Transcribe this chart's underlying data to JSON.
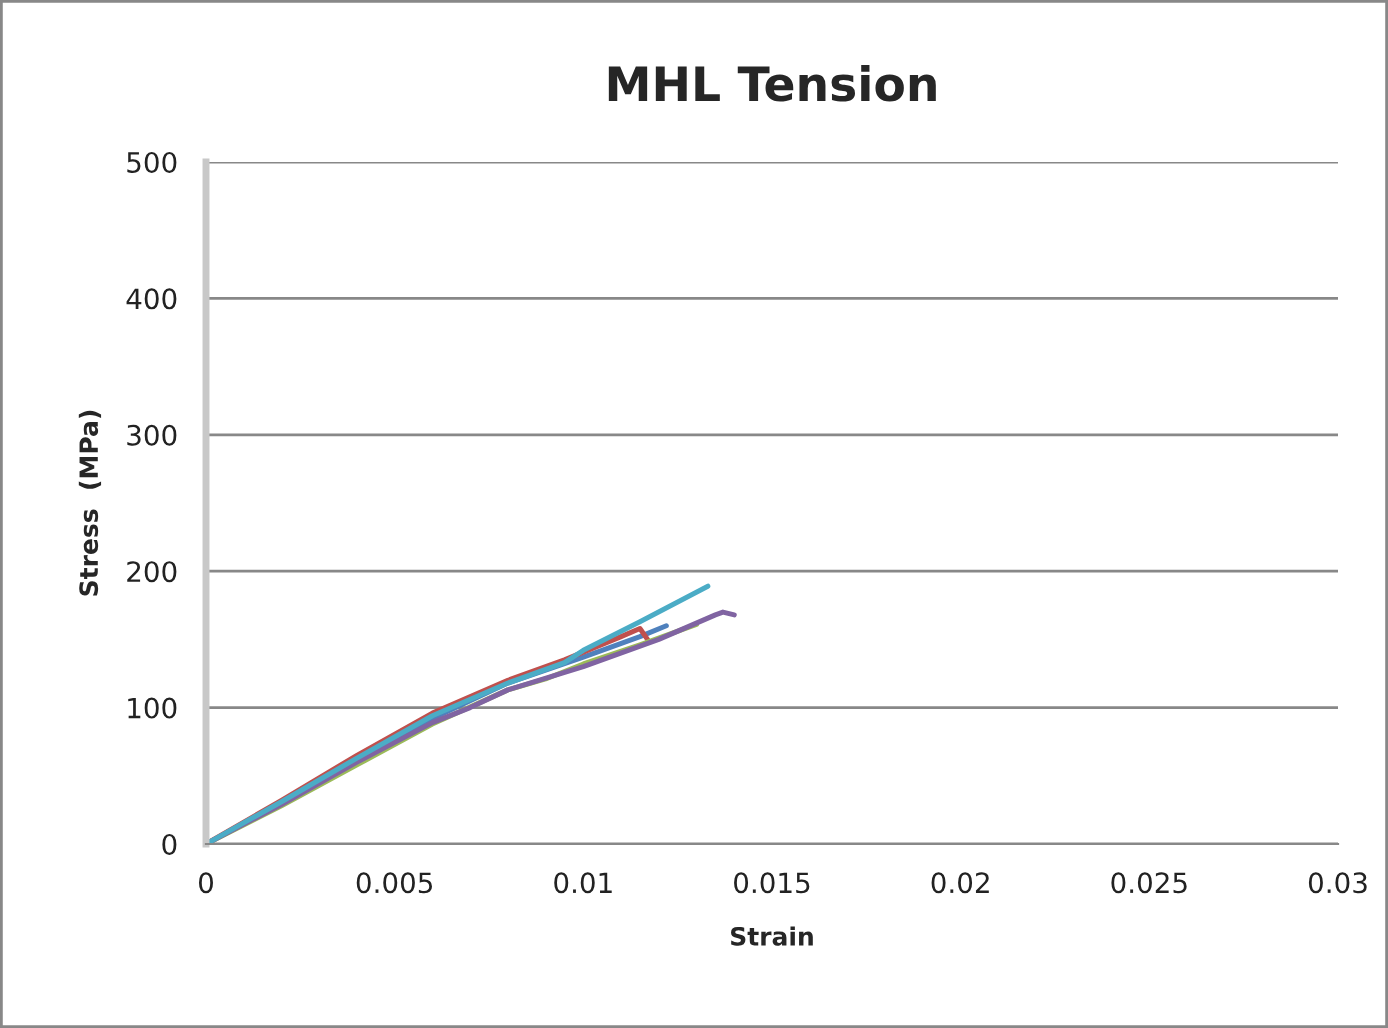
{
  "chart_data": {
    "type": "line",
    "title": "MHL Tension",
    "xlabel": "Strain",
    "ylabel": "Stress  (MPa)",
    "xlim": [
      0,
      0.03
    ],
    "xticks": [
      0,
      0.005,
      0.01,
      0.015,
      0.02,
      0.025,
      0.03
    ],
    "ylim": [
      0,
      500
    ],
    "yticks": [
      0,
      100,
      200,
      300,
      400,
      500
    ],
    "grid": "y",
    "legend": false,
    "marker": "none",
    "line_style": "solid",
    "series": [
      {
        "color": "#4f81bd",
        "x": [
          0,
          0.002,
          0.004,
          0.006,
          0.008,
          0.01,
          0.0115,
          0.0122
        ],
        "values": [
          0,
          30,
          62,
          92,
          118,
          137,
          152,
          160
        ]
      },
      {
        "color": "#c0504d",
        "x": [
          0,
          0.002,
          0.004,
          0.006,
          0.008,
          0.0095,
          0.011,
          0.0115,
          0.0117
        ],
        "values": [
          0,
          32,
          65,
          96,
          120,
          135,
          152,
          158,
          150
        ]
      },
      {
        "color": "#9bbb59",
        "x": [
          0,
          0.002,
          0.004,
          0.006,
          0.008,
          0.009,
          0.01,
          0.0115,
          0.013
        ],
        "values": [
          0,
          28,
          58,
          88,
          113,
          121,
          132,
          146,
          161
        ]
      },
      {
        "color": "#8064a2",
        "x": [
          0,
          0.002,
          0.004,
          0.006,
          0.007,
          0.008,
          0.01,
          0.012,
          0.0135,
          0.0137,
          0.014
        ],
        "values": [
          0,
          29,
          60,
          89,
          100,
          113,
          130,
          150,
          168,
          170,
          168
        ]
      },
      {
        "color": "#4bacc6",
        "x": [
          0,
          0.002,
          0.004,
          0.006,
          0.008,
          0.0095,
          0.01,
          0.0115,
          0.0133
        ],
        "values": [
          0,
          31,
          63,
          94,
          118,
          133,
          142,
          163,
          189
        ]
      }
    ]
  }
}
